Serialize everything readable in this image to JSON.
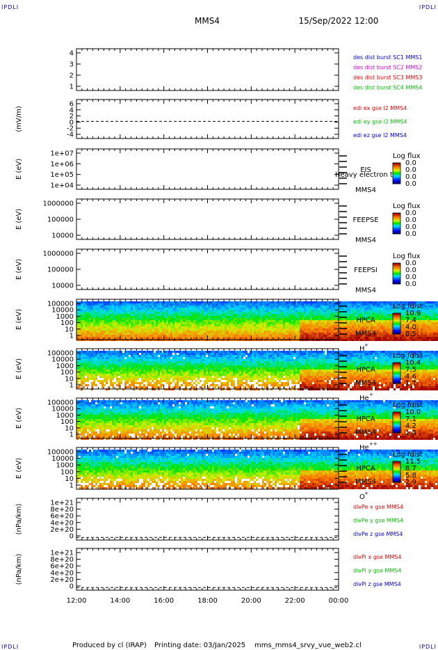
{
  "header": {
    "spacecraft": "MMS4",
    "datetime": "15/Sep/2022 12:00",
    "corner_label": "IPDLI"
  },
  "footer": {
    "produced": "Produced by cl (IRAP)",
    "printing": "Printing date: 03/Jan/2025",
    "file": "mms_mms4_srvy_vue_web2.cl"
  },
  "time_axis": {
    "ticks": [
      "12:00",
      "14:00",
      "16:00",
      "18:00",
      "20:00",
      "22:00",
      "00:00"
    ]
  },
  "colors": {
    "blue": "#0000cc",
    "magenta": "#cc00cc",
    "red": "#dd0000",
    "green": "#00bb00"
  },
  "chart_data": [
    {
      "type": "line",
      "ytick_labels": [
        "4",
        "3",
        "2",
        "1"
      ],
      "ylim": [
        0.6,
        4.6
      ],
      "legend": [
        {
          "label": "des dist burst SC1 MMS1",
          "color": "#0000cc"
        },
        {
          "label": "des dist burst SC2 MMS2",
          "color": "#cc00cc"
        },
        {
          "label": "des dist burst SC3 MMS3",
          "color": "#dd0000"
        },
        {
          "label": "des dist burst SC4 MMS4",
          "color": "#00bb00"
        }
      ]
    },
    {
      "type": "line",
      "ylabel": "(mV/m)",
      "ytick_labels": [
        "6",
        "4",
        "2",
        "0",
        "-2",
        "-4"
      ],
      "ylim": [
        -5.5,
        7
      ],
      "x_start_hours": 18.75,
      "legend": [
        {
          "label": "edi ex gse l2 MMS4",
          "color": "#dd0000"
        },
        {
          "label": "edi ey gse l2 MMS4",
          "color": "#00bb00"
        },
        {
          "label": "edi ez gse l2 MMS4",
          "color": "#0000cc"
        }
      ]
    },
    {
      "type": "heatmap",
      "ylabel": "E (eV)",
      "ytick_labels": [
        "1e+07",
        "1e+06",
        "1e+05",
        "1e+04"
      ],
      "instrument": "EIS",
      "instrument_overlay": "Heavy electron tof",
      "sc": "MMS4",
      "cbar_title": "Log flux",
      "cbar_ticks": [
        "0.0",
        "0.0",
        "0.0",
        "0.0"
      ],
      "empty": true
    },
    {
      "type": "heatmap",
      "ylabel": "E (eV)",
      "ytick_labels": [
        "1000000",
        "100000",
        "10000"
      ],
      "instrument": "FEEPSE",
      "sc": "MMS4",
      "cbar_title": "Log flux",
      "cbar_ticks": [
        "0.0",
        "0.0",
        "0.0",
        "0.0"
      ],
      "empty": true
    },
    {
      "type": "heatmap",
      "ylabel": "E (eV)",
      "ytick_labels": [
        "1000000",
        "100000",
        "10000"
      ],
      "instrument": "FEEPSI",
      "sc": "MMS4",
      "cbar_title": "Log flux",
      "cbar_ticks": [
        "0.0",
        "0.0",
        "0.0",
        "0.0"
      ],
      "empty": true
    },
    {
      "type": "heatmap",
      "ylabel": "E (eV)",
      "ytick_labels": [
        "100000",
        "10000",
        "1000",
        "100",
        "10",
        "1"
      ],
      "instrument": "HPCA",
      "sc": "MMS4",
      "species": "H",
      "species_sup": "+",
      "cbar_title": "Log fdist",
      "cbar_ticks": [
        "10.9",
        "7.4",
        "4.0",
        "0.5"
      ],
      "x_end_hours": 23.65,
      "sparsity": 0.0
    },
    {
      "type": "heatmap",
      "ylabel": "E (eV)",
      "ytick_labels": [
        "100000",
        "10000",
        "1000",
        "100",
        "10",
        "1"
      ],
      "instrument": "HPCA",
      "sc": "MMS4",
      "species": "He",
      "species_sup": "+",
      "cbar_title": "Log fdist",
      "cbar_ticks": [
        "10.4",
        "7.5",
        "4.6",
        "1.7"
      ],
      "x_end_hours": 23.65,
      "sparsity": 0.6
    },
    {
      "type": "heatmap",
      "ylabel": "E (eV)",
      "ytick_labels": [
        "100000",
        "10000",
        "1000",
        "100",
        "10",
        "1"
      ],
      "instrument": "HPCA",
      "sc": "MMS4",
      "species": "He",
      "species_sup": "++",
      "cbar_title": "Log fdist",
      "cbar_ticks": [
        "10.0",
        "7.1",
        "4.2",
        "1.4"
      ],
      "x_end_hours": 23.65,
      "sparsity": 0.25
    },
    {
      "type": "heatmap",
      "ylabel": "E (eV)",
      "ytick_labels": [
        "100000",
        "10000",
        "1000",
        "100",
        "10",
        "1"
      ],
      "instrument": "HPCA",
      "sc": "MMS4",
      "species": "O",
      "species_sup": "+",
      "cbar_title": "Log fdist",
      "cbar_ticks": [
        "11.5",
        "8.7",
        "5.8",
        "2.9"
      ],
      "x_end_hours": 23.65,
      "sparsity": 0.5
    },
    {
      "type": "line",
      "ylabel": "(nPa/km)",
      "ytick_labels": [
        "1e+21",
        "8e+20",
        "6e+20",
        "4e+20",
        "2e+20",
        "0"
      ],
      "ylim": [
        -7e+19,
        1.05e+21
      ],
      "dashed_zero": true,
      "legend": [
        {
          "label": "divPe x gse MMS4",
          "color": "#dd0000"
        },
        {
          "label": "divPe y gse MMS4",
          "color": "#00bb00"
        },
        {
          "label": "divPe z gse MMS4",
          "color": "#0000cc"
        }
      ]
    },
    {
      "type": "line",
      "ylabel": "(nPa/km)",
      "ytick_labels": [
        "1e+21",
        "8e+20",
        "6e+20",
        "4e+20",
        "2e+20",
        "0"
      ],
      "ylim": [
        -7e+19,
        1.05e+21
      ],
      "dashed_zero": true,
      "legend": [
        {
          "label": "divPi x gse MMS4",
          "color": "#dd0000"
        },
        {
          "label": "divPi y gse MMS4",
          "color": "#00bb00"
        },
        {
          "label": "divPi z gse MMS4",
          "color": "#0000cc"
        }
      ]
    }
  ]
}
